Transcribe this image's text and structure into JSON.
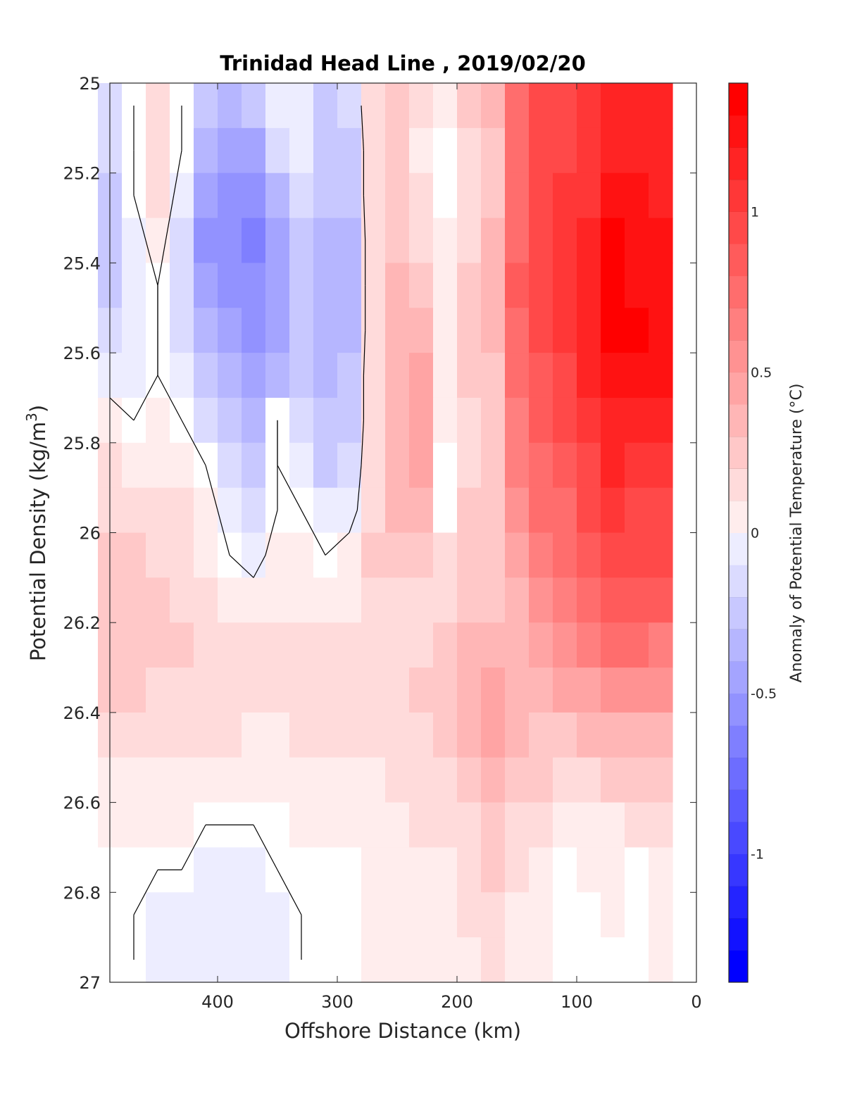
{
  "chart_data": {
    "type": "heatmap",
    "title": "Trinidad Head Line , 2019/02/20",
    "xlabel": "Offshore Distance (km)",
    "ylabel": "Potential Density (kg/m",
    "ylabel_sup": "3",
    "ylabel_close": ")",
    "xlim": [
      490,
      0
    ],
    "ylim": [
      25,
      27
    ],
    "x_reversed": true,
    "y_reversed": true,
    "x_ticks": [
      400,
      300,
      200,
      100,
      0
    ],
    "x_tick_labels": [
      "400",
      "300",
      "200",
      "100",
      "0"
    ],
    "y_ticks": [
      25,
      25.2,
      25.4,
      25.6,
      25.8,
      26,
      26.2,
      26.4,
      26.6,
      26.8,
      27
    ],
    "y_tick_labels": [
      "25",
      "25.2",
      "25.4",
      "25.6",
      "25.8",
      "26",
      "26.2",
      "26.4",
      "26.6",
      "26.8",
      "27"
    ],
    "colorbar": {
      "label": "Anomaly of Potential Temperature (°C)",
      "range": [
        -1.4,
        1.4
      ],
      "step": 0.1,
      "ticks": [
        1,
        0.5,
        0,
        -0.5,
        -1
      ],
      "tick_labels": [
        "1",
        "0.5",
        "0",
        "-0.5",
        "-1"
      ],
      "colormap": "blue-white-red",
      "neg_color": "#0000ff",
      "zero_color": "#ffffff",
      "pos_color": "#ff0000"
    },
    "contour_levels": [
      0
    ],
    "x": [
      490,
      470,
      450,
      430,
      410,
      390,
      370,
      350,
      330,
      310,
      290,
      270,
      250,
      230,
      210,
      190,
      170,
      150,
      130,
      110,
      90,
      70,
      50,
      30
    ],
    "y": [
      25,
      25.1,
      25.2,
      25.3,
      25.4,
      25.5,
      25.6,
      25.7,
      25.8,
      25.9,
      26,
      26.1,
      26.2,
      26.3,
      26.4,
      26.5,
      26.6,
      26.7,
      26.8,
      26.9
    ],
    "z": [
      [
        -0.2,
        0.0,
        0.2,
        0.0,
        -0.3,
        -0.4,
        -0.3,
        -0.1,
        -0.1,
        -0.3,
        -0.2,
        0.2,
        0.3,
        0.2,
        0.1,
        0.3,
        0.4,
        0.8,
        1.0,
        1.0,
        1.1,
        1.2,
        1.2,
        1.2
      ],
      [
        -0.2,
        0.0,
        0.2,
        0.0,
        -0.4,
        -0.5,
        -0.5,
        -0.2,
        -0.1,
        -0.3,
        -0.3,
        0.2,
        0.3,
        0.1,
        0.0,
        0.2,
        0.3,
        0.8,
        1.0,
        1.0,
        1.1,
        1.2,
        1.2,
        1.2
      ],
      [
        -0.3,
        0.0,
        0.2,
        -0.1,
        -0.5,
        -0.6,
        -0.6,
        -0.4,
        -0.2,
        -0.3,
        -0.3,
        0.2,
        0.3,
        0.2,
        0.0,
        0.2,
        0.3,
        0.8,
        1.0,
        1.1,
        1.1,
        1.3,
        1.3,
        1.2
      ],
      [
        -0.3,
        -0.1,
        0.1,
        -0.2,
        -0.6,
        -0.6,
        -0.7,
        -0.5,
        -0.3,
        -0.4,
        -0.4,
        0.2,
        0.3,
        0.2,
        0.1,
        0.2,
        0.4,
        0.8,
        1.0,
        1.1,
        1.2,
        1.4,
        1.3,
        1.3
      ],
      [
        -0.3,
        -0.1,
        0.0,
        -0.2,
        -0.5,
        -0.6,
        -0.6,
        -0.5,
        -0.3,
        -0.4,
        -0.4,
        0.2,
        0.4,
        0.3,
        0.1,
        0.3,
        0.4,
        0.9,
        1.0,
        1.1,
        1.2,
        1.4,
        1.3,
        1.3
      ],
      [
        -0.2,
        -0.1,
        0.0,
        -0.2,
        -0.4,
        -0.5,
        -0.6,
        -0.5,
        -0.3,
        -0.4,
        -0.4,
        0.2,
        0.4,
        0.4,
        0.1,
        0.3,
        0.4,
        0.8,
        1.0,
        1.1,
        1.2,
        1.4,
        1.4,
        1.3
      ],
      [
        -0.1,
        -0.1,
        0.0,
        -0.1,
        -0.3,
        -0.4,
        -0.5,
        -0.4,
        -0.3,
        -0.4,
        -0.3,
        0.2,
        0.4,
        0.5,
        0.1,
        0.3,
        0.3,
        0.8,
        0.9,
        1.0,
        1.2,
        1.3,
        1.3,
        1.3
      ],
      [
        0.1,
        0.0,
        0.1,
        0.0,
        -0.2,
        -0.3,
        -0.4,
        0.0,
        -0.2,
        -0.3,
        -0.3,
        0.2,
        0.4,
        0.5,
        0.1,
        0.2,
        0.3,
        0.7,
        0.9,
        1.0,
        1.1,
        1.2,
        1.2,
        1.2
      ],
      [
        0.2,
        0.1,
        0.1,
        0.1,
        0.0,
        -0.2,
        -0.3,
        0.0,
        -0.1,
        -0.3,
        -0.2,
        0.2,
        0.4,
        0.5,
        0.0,
        0.2,
        0.3,
        0.7,
        0.8,
        0.9,
        1.0,
        1.2,
        1.1,
        1.1
      ],
      [
        0.2,
        0.2,
        0.2,
        0.2,
        0.1,
        -0.1,
        -0.2,
        0.0,
        0.0,
        -0.1,
        -0.1,
        0.2,
        0.4,
        0.4,
        0.0,
        0.3,
        0.3,
        0.6,
        0.8,
        0.8,
        1.0,
        1.1,
        1.0,
        1.0
      ],
      [
        0.3,
        0.3,
        0.2,
        0.2,
        0.1,
        0.0,
        -0.1,
        0.1,
        0.1,
        0.0,
        0.1,
        0.3,
        0.3,
        0.3,
        0.2,
        0.3,
        0.3,
        0.5,
        0.7,
        0.8,
        0.9,
        1.0,
        1.0,
        1.0
      ],
      [
        0.3,
        0.3,
        0.3,
        0.2,
        0.2,
        0.1,
        0.1,
        0.1,
        0.1,
        0.1,
        0.1,
        0.2,
        0.2,
        0.2,
        0.2,
        0.3,
        0.3,
        0.4,
        0.6,
        0.7,
        0.8,
        0.9,
        0.9,
        0.9
      ],
      [
        0.3,
        0.3,
        0.3,
        0.3,
        0.2,
        0.2,
        0.2,
        0.2,
        0.2,
        0.2,
        0.2,
        0.2,
        0.2,
        0.2,
        0.3,
        0.4,
        0.4,
        0.4,
        0.5,
        0.6,
        0.7,
        0.8,
        0.8,
        0.7
      ],
      [
        0.3,
        0.3,
        0.2,
        0.2,
        0.2,
        0.2,
        0.2,
        0.2,
        0.2,
        0.2,
        0.2,
        0.2,
        0.2,
        0.3,
        0.3,
        0.4,
        0.5,
        0.4,
        0.4,
        0.5,
        0.5,
        0.6,
        0.6,
        0.6
      ],
      [
        0.2,
        0.2,
        0.2,
        0.2,
        0.2,
        0.2,
        0.1,
        0.1,
        0.2,
        0.2,
        0.2,
        0.2,
        0.2,
        0.2,
        0.3,
        0.4,
        0.5,
        0.4,
        0.3,
        0.3,
        0.4,
        0.4,
        0.4,
        0.4
      ],
      [
        0.1,
        0.1,
        0.1,
        0.1,
        0.1,
        0.1,
        0.1,
        0.1,
        0.1,
        0.1,
        0.1,
        0.1,
        0.2,
        0.2,
        0.2,
        0.3,
        0.4,
        0.3,
        0.3,
        0.2,
        0.2,
        0.3,
        0.3,
        0.3
      ],
      [
        0.1,
        0.1,
        0.1,
        0.1,
        0.0,
        0.0,
        0.0,
        0.0,
        0.1,
        0.1,
        0.1,
        0.1,
        0.1,
        0.2,
        0.2,
        0.2,
        0.3,
        0.2,
        0.2,
        0.1,
        0.1,
        0.1,
        0.2,
        0.2
      ],
      [
        0.0,
        0.0,
        0.0,
        0.0,
        -0.1,
        -0.1,
        -0.1,
        0.0,
        0.0,
        0.0,
        0.0,
        0.1,
        0.1,
        0.1,
        0.1,
        0.2,
        0.3,
        0.2,
        0.1,
        0.0,
        0.1,
        0.1,
        0.0,
        0.1
      ],
      [
        0.0,
        0.0,
        -0.1,
        -0.1,
        -0.1,
        -0.1,
        -0.1,
        -0.1,
        0.0,
        0.0,
        0.0,
        0.1,
        0.1,
        0.1,
        0.1,
        0.2,
        0.2,
        0.1,
        0.1,
        0.0,
        0.0,
        0.1,
        0.0,
        0.1
      ],
      [
        0.0,
        0.0,
        -0.1,
        -0.1,
        -0.1,
        -0.1,
        -0.1,
        -0.1,
        0.0,
        0.0,
        0.0,
        0.1,
        0.1,
        0.1,
        0.1,
        0.1,
        0.2,
        0.1,
        0.1,
        0.0,
        0.0,
        0.0,
        0.0,
        0.1
      ]
    ]
  }
}
